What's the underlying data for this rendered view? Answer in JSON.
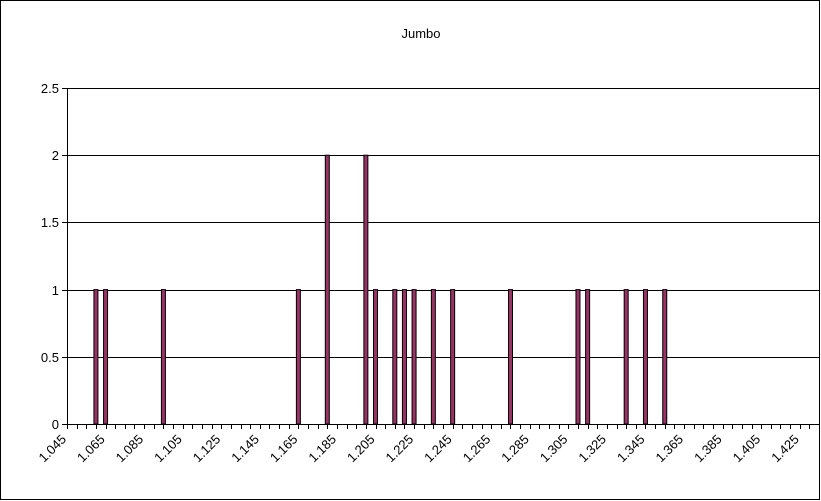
{
  "chart_data": {
    "type": "bar",
    "title": "Jumbo",
    "xlabel": "",
    "ylabel": "",
    "ylim": [
      0,
      2.5
    ],
    "y_ticks": [
      "0",
      "0.5",
      "1",
      "1.5",
      "2",
      "2.5"
    ],
    "x_range": [
      1.045,
      1.435
    ],
    "x_bin_width": 0.005,
    "x_tick_labels": [
      "1.045",
      "1.065",
      "1.085",
      "1.105",
      "1.125",
      "1.145",
      "1.165",
      "1.185",
      "1.205",
      "1.225",
      "1.245",
      "1.265",
      "1.285",
      "1.305",
      "1.325",
      "1.345",
      "1.365",
      "1.385",
      "1.405",
      "1.425"
    ],
    "grid": true,
    "legend": "none",
    "colors": {
      "bar_fill": "#993366",
      "bar_edge": "#000000",
      "grid": "#000000",
      "axis": "#000000"
    },
    "points": [
      {
        "x": 1.06,
        "y": 1
      },
      {
        "x": 1.065,
        "y": 1
      },
      {
        "x": 1.095,
        "y": 1
      },
      {
        "x": 1.165,
        "y": 1
      },
      {
        "x": 1.18,
        "y": 2
      },
      {
        "x": 1.2,
        "y": 2
      },
      {
        "x": 1.205,
        "y": 1
      },
      {
        "x": 1.215,
        "y": 1
      },
      {
        "x": 1.22,
        "y": 1
      },
      {
        "x": 1.225,
        "y": 1
      },
      {
        "x": 1.235,
        "y": 1
      },
      {
        "x": 1.245,
        "y": 1
      },
      {
        "x": 1.275,
        "y": 1
      },
      {
        "x": 1.31,
        "y": 1
      },
      {
        "x": 1.315,
        "y": 1
      },
      {
        "x": 1.335,
        "y": 1
      },
      {
        "x": 1.345,
        "y": 1
      },
      {
        "x": 1.355,
        "y": 1
      }
    ]
  }
}
